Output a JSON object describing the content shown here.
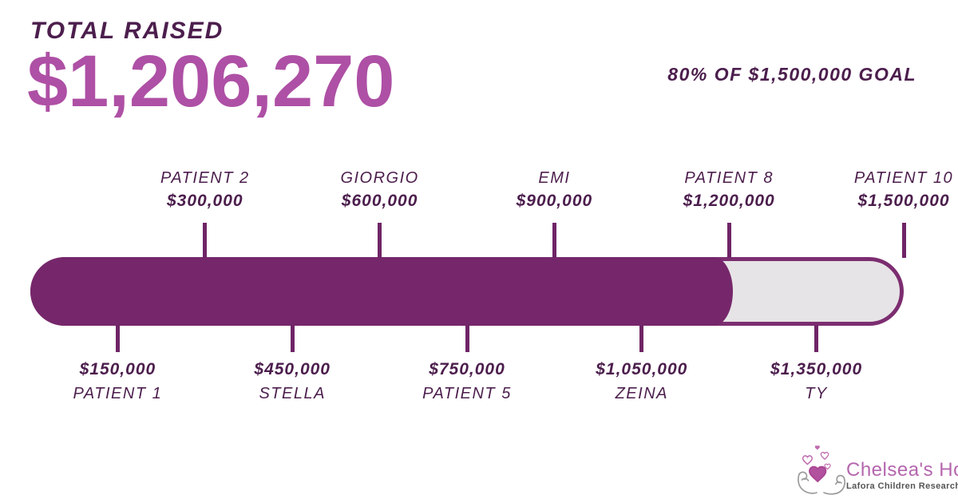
{
  "header": {
    "label": "TOTAL RAISED",
    "amount": "$1,206,270",
    "goal_text": "80% OF $1,500,000 GOAL"
  },
  "chart_data": {
    "type": "bar",
    "title": "TOTAL RAISED",
    "raised": 1206270,
    "raised_label": "$1,206,270",
    "goal": 1500000,
    "goal_label": "$1,500,000",
    "percent_of_goal": 80,
    "axis_min": 0,
    "axis_max": 1500000,
    "bar_fill_color": "#76276B",
    "bar_track_color": "#E6E4E6",
    "bar_border_color": "#7C2D70",
    "tick_color": "#6F2566",
    "milestones": [
      {
        "name": "PATIENT 1",
        "amount_label": "$150,000",
        "value": 150000,
        "side": "below"
      },
      {
        "name": "PATIENT 2",
        "amount_label": "$300,000",
        "value": 300000,
        "side": "above"
      },
      {
        "name": "STELLA",
        "amount_label": "$450,000",
        "value": 450000,
        "side": "below"
      },
      {
        "name": "GIORGIO",
        "amount_label": "$600,000",
        "value": 600000,
        "side": "above"
      },
      {
        "name": "PATIENT 5",
        "amount_label": "$750,000",
        "value": 750000,
        "side": "below"
      },
      {
        "name": "EMI",
        "amount_label": "$900,000",
        "value": 900000,
        "side": "above"
      },
      {
        "name": "ZEINA",
        "amount_label": "$1,050,000",
        "value": 1050000,
        "side": "below"
      },
      {
        "name": "PATIENT 8",
        "amount_label": "$1,200,000",
        "value": 1200000,
        "side": "above"
      },
      {
        "name": "TY",
        "amount_label": "$1,350,000",
        "value": 1350000,
        "side": "below"
      },
      {
        "name": "PATIENT 10",
        "amount_label": "$1,500,000",
        "value": 1500000,
        "side": "above"
      }
    ]
  },
  "logo": {
    "name": "Chelsea's Hope",
    "tagline": "Lafora Children Research Fund",
    "pink": "#B566AE",
    "heart_fill": "#B2519E",
    "hand_gray": "#9B9B9B"
  },
  "colors": {
    "dark_purple_text": "#4C1E4D",
    "amount_magenta": "#AE50A5"
  }
}
